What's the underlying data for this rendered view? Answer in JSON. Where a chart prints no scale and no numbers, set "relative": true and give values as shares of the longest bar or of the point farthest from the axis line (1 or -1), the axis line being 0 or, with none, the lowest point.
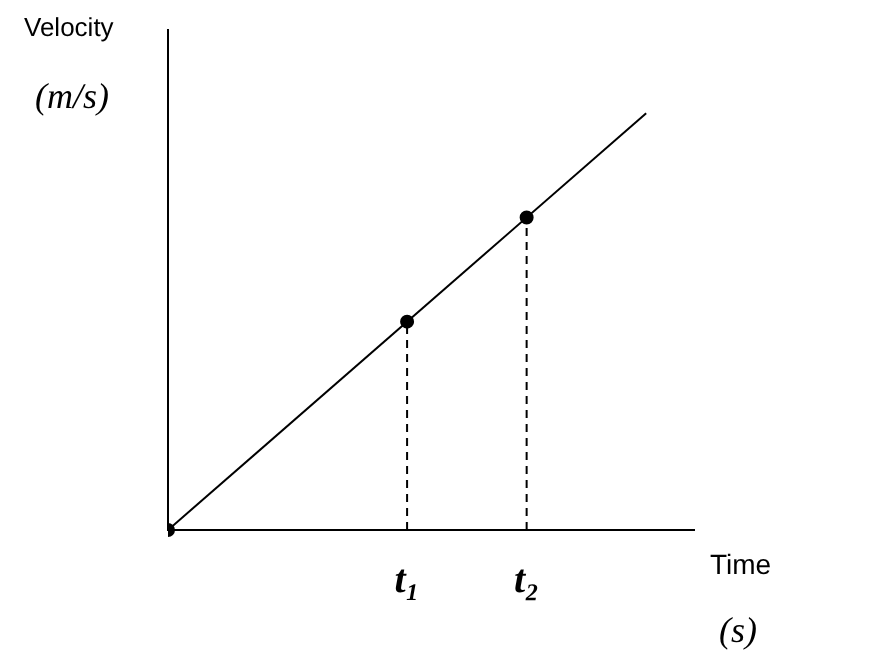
{
  "chart_data": {
    "type": "line",
    "relative": true,
    "xlabel": "Time",
    "ylabel": "Velocity",
    "annotations": [
      "(m/s)",
      "(s)"
    ],
    "categories": [
      null,
      null,
      "t₁",
      "t₂",
      null
    ],
    "legend": false,
    "series": [
      {
        "type": "line",
        "color": "#000000",
        "values": [
          0,
          null,
          null,
          null,
          1
        ],
        "marker": "none",
        "line_style": "solid"
      },
      {
        "type": "lollipop",
        "color": "#000000",
        "values": [
          0,
          null,
          0.5,
          0.75,
          null
        ],
        "marker": "circle",
        "line_style": "dashed"
      }
    ]
  }
}
